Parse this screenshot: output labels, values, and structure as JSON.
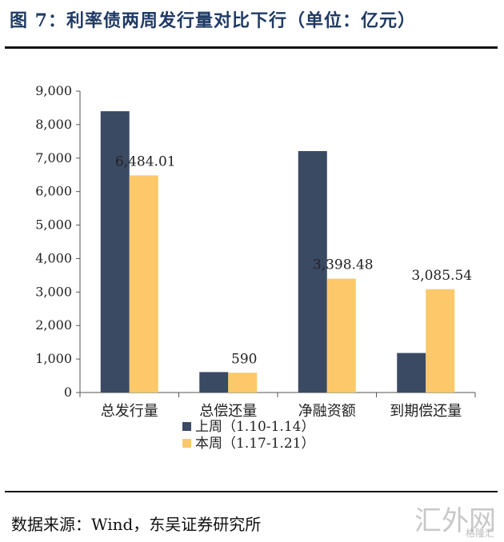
{
  "header": {
    "title": "图 7：利率债两周发行量对比下行（单位：亿元）"
  },
  "footer": {
    "source": "数据来源：Wind，东吴证券研究所"
  },
  "watermark": {
    "main": "汇外网",
    "sub": "格隆汇"
  },
  "chart_data": {
    "type": "bar",
    "categories": [
      "总发行量",
      "总偿还量",
      "净融资额",
      "到期偿还量"
    ],
    "series": [
      {
        "name": "上周（1.10-1.14）",
        "color": "#3a4a63",
        "values": [
          8400,
          610,
          7210,
          1180
        ],
        "labels": [
          null,
          null,
          null,
          null
        ]
      },
      {
        "name": "本周（1.17-1.21）",
        "color": "#fcc86a",
        "values": [
          6484.01,
          590,
          3398.48,
          3085.54
        ],
        "labels": [
          "6,484.01",
          "590",
          "3,398.48",
          "3,085.54"
        ]
      }
    ],
    "ylim": [
      0,
      9000
    ],
    "yticks": [
      0,
      1000,
      2000,
      3000,
      4000,
      5000,
      6000,
      7000,
      8000,
      9000
    ],
    "ytick_labels": [
      "0",
      "1,000",
      "2,000",
      "3,000",
      "4,000",
      "5,000",
      "6,000",
      "7,000",
      "8,000",
      "9,000"
    ],
    "xlabel": "",
    "ylabel": "",
    "grid": false,
    "legend_position": "bottom-center"
  }
}
